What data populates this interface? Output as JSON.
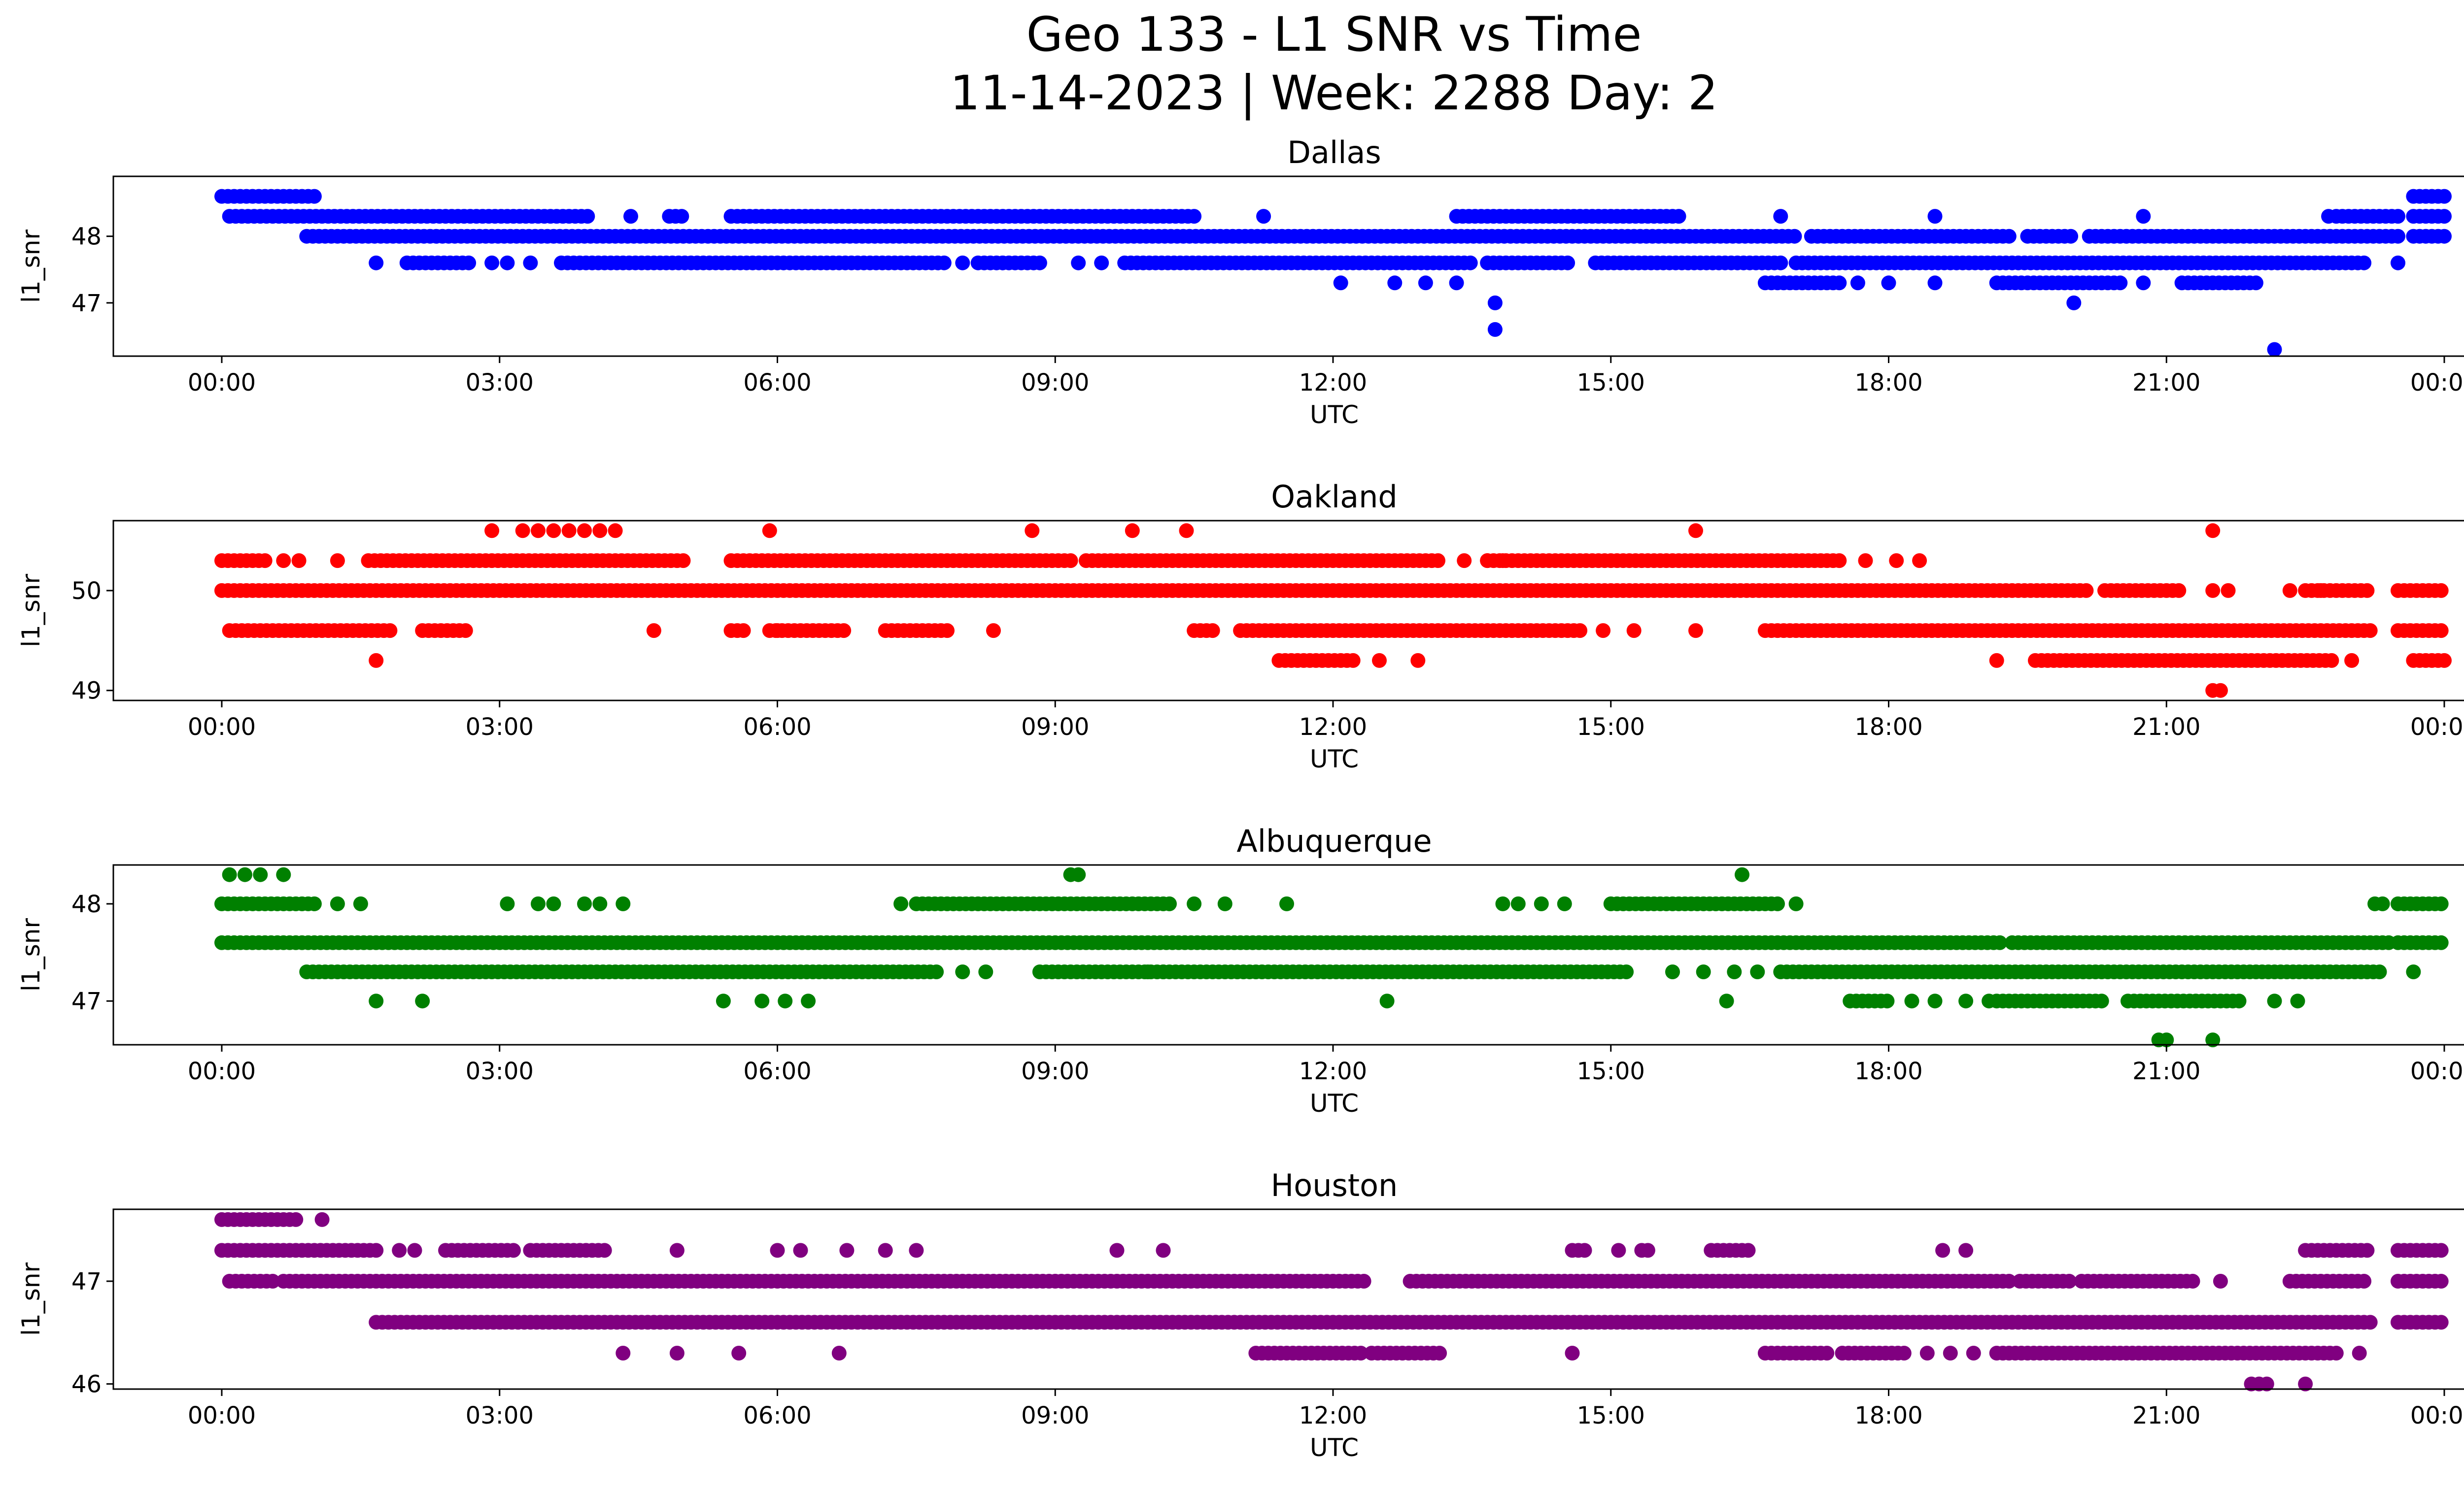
{
  "figure": {
    "title_line1": "Geo 133 - L1 SNR vs Time",
    "title_line2": "11-14-2023 | Week: 2288 Day: 2"
  },
  "chart_data": [
    {
      "type": "scatter",
      "title": "Dallas",
      "color": "#0000ff",
      "xlabel": "UTC",
      "ylabel": "l1_snr",
      "xlim": [
        "23:00",
        "25:45"
      ],
      "x_ticks": [
        "00:00",
        "03:00",
        "06:00",
        "09:00",
        "12:00",
        "15:00",
        "18:00",
        "21:00",
        "00:00"
      ],
      "ylim": [
        46.2,
        48.9
      ],
      "y_ticks": [
        47,
        48
      ],
      "grid": false,
      "series": [
        {
          "y": 48.6,
          "ranges": [
            [
              "00:00",
              "01:00"
            ],
            [
              "23:40",
              "24:00"
            ]
          ]
        },
        {
          "y": 48.3,
          "ranges": [
            [
              "00:05",
              "04:00"
            ],
            [
              "04:50",
              "05:00"
            ],
            [
              "05:30",
              "10:30"
            ],
            [
              "13:20",
              "15:45"
            ],
            [
              "22:50",
              "23:30"
            ],
            [
              "23:40",
              "24:00"
            ]
          ],
          "points": [
            "04:25",
            "11:15",
            "16:50",
            "18:30",
            "20:45",
            "22:45"
          ]
        },
        {
          "y": 48.0,
          "ranges": [
            [
              "00:55",
              "17:00"
            ],
            [
              "17:10",
              "19:20"
            ],
            [
              "19:30",
              "20:00"
            ],
            [
              "20:10",
              "23:30"
            ],
            [
              "23:40",
              "24:00"
            ]
          ]
        },
        {
          "y": 47.6,
          "ranges": [
            [
              "02:00",
              "02:40"
            ],
            [
              "03:40",
              "07:50"
            ],
            [
              "08:10",
              "08:50"
            ],
            [
              "09:45",
              "13:30"
            ],
            [
              "13:40",
              "14:35"
            ],
            [
              "14:50",
              "16:50"
            ],
            [
              "17:00",
              "23:10"
            ]
          ],
          "points": [
            "01:40",
            "02:55",
            "03:05",
            "03:20",
            "08:00",
            "09:15",
            "09:30",
            "23:30"
          ]
        },
        {
          "y": 47.3,
          "ranges": [
            [
              "16:40",
              "17:30"
            ],
            [
              "19:10",
              "20:30"
            ],
            [
              "21:10",
              "22:00"
            ]
          ],
          "points": [
            "12:05",
            "12:40",
            "13:00",
            "13:20",
            "17:40",
            "18:00",
            "18:30",
            "20:45"
          ]
        },
        {
          "y": 47.0,
          "points": [
            "13:45",
            "20:00"
          ]
        },
        {
          "y": 46.6,
          "points": [
            "13:45"
          ]
        },
        {
          "y": 46.3,
          "points": [
            "22:10"
          ]
        }
      ]
    },
    {
      "type": "scatter",
      "title": "Oakland",
      "color": "#ff0000",
      "xlabel": "UTC",
      "ylabel": "l1_snr",
      "xlim": [
        "23:00",
        "25:45"
      ],
      "x_ticks": [
        "00:00",
        "03:00",
        "06:00",
        "09:00",
        "12:00",
        "15:00",
        "18:00",
        "21:00",
        "00:00"
      ],
      "ylim": [
        48.9,
        50.7
      ],
      "y_ticks": [
        49,
        50
      ],
      "grid": false,
      "series": [
        {
          "y": 50.6,
          "points": [
            "02:55",
            "03:15",
            "03:25",
            "03:35",
            "03:45",
            "03:55",
            "04:05",
            "04:15",
            "05:55",
            "08:45",
            "09:50",
            "10:25",
            "15:55",
            "21:30"
          ]
        },
        {
          "y": 50.3,
          "ranges": [
            [
              "00:00",
              "00:30"
            ],
            [
              "01:35",
              "05:00"
            ],
            [
              "05:30",
              "09:10"
            ],
            [
              "09:20",
              "13:10"
            ],
            [
              "13:40",
              "17:30"
            ]
          ],
          "points": [
            "00:40",
            "00:50",
            "01:15",
            "13:25",
            "13:40",
            "13:50",
            "17:45",
            "18:05",
            "18:20"
          ]
        },
        {
          "y": 50.0,
          "ranges": [
            [
              "00:00",
              "20:10"
            ],
            [
              "20:20",
              "21:10"
            ],
            [
              "22:30",
              "23:10"
            ],
            [
              "23:30",
              "24:00"
            ]
          ],
          "points": [
            "21:40",
            "21:30",
            "22:20",
            "22:40"
          ]
        },
        {
          "y": 49.6,
          "ranges": [
            [
              "00:05",
              "01:50"
            ],
            [
              "02:10",
              "02:40"
            ],
            [
              "05:30",
              "05:40"
            ],
            [
              "05:55",
              "06:45"
            ],
            [
              "07:10",
              "07:50"
            ],
            [
              "10:30",
              "10:45"
            ],
            [
              "11:00",
              "14:40"
            ],
            [
              "16:40",
              "23:15"
            ],
            [
              "23:30",
              "24:00"
            ]
          ],
          "points": [
            "04:40",
            "06:00",
            "08:20",
            "14:55",
            "15:15",
            "15:55"
          ]
        },
        {
          "y": 49.3,
          "ranges": [
            [
              "11:25",
              "12:15"
            ],
            [
              "19:35",
              "22:50"
            ],
            [
              "23:40",
              "24:00"
            ]
          ],
          "points": [
            "01:40",
            "12:30",
            "12:55",
            "19:10",
            "23:00"
          ]
        },
        {
          "y": 49.0,
          "points": [
            "21:30",
            "21:35"
          ]
        }
      ]
    },
    {
      "type": "scatter",
      "title": "Albuquerque",
      "color": "#008000",
      "xlabel": "UTC",
      "ylabel": "l1_snr",
      "xlim": [
        "23:00",
        "25:45"
      ],
      "x_ticks": [
        "00:00",
        "03:00",
        "06:00",
        "09:00",
        "12:00",
        "15:00",
        "18:00",
        "21:00",
        "00:00"
      ],
      "ylim": [
        46.55,
        48.4
      ],
      "y_ticks": [
        47,
        48
      ],
      "grid": false,
      "series": [
        {
          "y": 48.3,
          "points": [
            "00:05",
            "00:15",
            "00:25",
            "00:40",
            "09:10",
            "09:15",
            "16:25"
          ]
        },
        {
          "y": 48.0,
          "ranges": [
            [
              "00:00",
              "01:00"
            ],
            [
              "07:30",
              "10:15"
            ],
            [
              "15:00",
              "16:50"
            ],
            [
              "23:30",
              "24:00"
            ]
          ],
          "points": [
            "01:15",
            "01:30",
            "03:05",
            "03:25",
            "03:35",
            "03:55",
            "04:05",
            "04:20",
            "07:20",
            "10:30",
            "10:50",
            "11:30",
            "13:50",
            "14:00",
            "14:15",
            "14:30",
            "17:00",
            "23:15",
            "23:20"
          ]
        },
        {
          "y": 47.6,
          "ranges": [
            [
              "00:00",
              "19:15"
            ],
            [
              "19:20",
              "23:25"
            ],
            [
              "23:30",
              "24:00"
            ]
          ]
        },
        {
          "y": 47.3,
          "ranges": [
            [
              "00:55",
              "07:45"
            ],
            [
              "08:50",
              "15:10"
            ],
            [
              "16:50",
              "23:20"
            ]
          ],
          "points": [
            "08:00",
            "08:15",
            "10:00",
            "10:10",
            "15:40",
            "16:00",
            "16:20",
            "16:35",
            "23:40"
          ]
        },
        {
          "y": 47.0,
          "ranges": [
            [
              "17:35",
              "18:00"
            ],
            [
              "19:10",
              "20:20"
            ],
            [
              "20:35",
              "21:50"
            ]
          ],
          "points": [
            "01:40",
            "02:10",
            "05:25",
            "05:50",
            "06:05",
            "06:20",
            "12:35",
            "16:15",
            "18:15",
            "18:30",
            "18:50",
            "19:05",
            "22:10",
            "22:25"
          ]
        },
        {
          "y": 46.6,
          "points": [
            "20:55",
            "21:00",
            "21:30"
          ]
        }
      ]
    },
    {
      "type": "scatter",
      "title": "Houston",
      "color": "#800080",
      "xlabel": "UTC",
      "ylabel": "l1_snr",
      "xlim": [
        "23:00",
        "25:45"
      ],
      "x_ticks": [
        "00:00",
        "03:00",
        "06:00",
        "09:00",
        "12:00",
        "15:00",
        "18:00",
        "21:00",
        "00:00"
      ],
      "ylim": [
        45.95,
        47.7
      ],
      "y_ticks": [
        46,
        47
      ],
      "grid": false,
      "series": [
        {
          "y": 47.6,
          "ranges": [
            [
              "00:00",
              "00:50"
            ]
          ],
          "points": [
            "01:05"
          ]
        },
        {
          "y": 47.3,
          "ranges": [
            [
              "00:00",
              "01:40"
            ],
            [
              "02:25",
              "03:10"
            ],
            [
              "03:20",
              "04:10"
            ],
            [
              "14:35",
              "14:45"
            ],
            [
              "15:20",
              "15:25"
            ],
            [
              "16:05",
              "16:30"
            ],
            [
              "22:30",
              "23:10"
            ],
            [
              "23:30",
              "24:00"
            ]
          ],
          "points": [
            "01:55",
            "02:05",
            "04:55",
            "06:00",
            "06:15",
            "06:45",
            "07:10",
            "07:30",
            "09:40",
            "10:10",
            "15:05",
            "18:35",
            "18:50"
          ]
        },
        {
          "y": 47.0,
          "ranges": [
            [
              "00:05",
              "00:35"
            ],
            [
              "00:40",
              "12:20"
            ],
            [
              "12:50",
              "19:20"
            ],
            [
              "19:25",
              "20:00"
            ],
            [
              "20:05",
              "21:20"
            ],
            [
              "22:20",
              "23:10"
            ],
            [
              "23:30",
              "24:00"
            ]
          ],
          "points": [
            "21:35"
          ]
        },
        {
          "y": 46.6,
          "ranges": [
            [
              "01:40",
              "23:15"
            ],
            [
              "23:30",
              "24:00"
            ]
          ]
        },
        {
          "y": 46.3,
          "ranges": [
            [
              "11:10",
              "12:20"
            ],
            [
              "12:25",
              "13:10"
            ],
            [
              "16:40",
              "17:20"
            ],
            [
              "17:30",
              "18:10"
            ],
            [
              "19:10",
              "22:50"
            ]
          ],
          "points": [
            "04:20",
            "04:55",
            "05:35",
            "06:40",
            "14:35",
            "18:25",
            "18:40",
            "18:55",
            "23:05"
          ]
        },
        {
          "y": 46.0,
          "points": [
            "21:55",
            "22:00",
            "22:05",
            "22:30"
          ]
        }
      ]
    }
  ]
}
